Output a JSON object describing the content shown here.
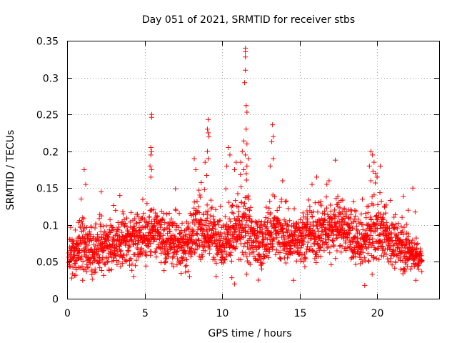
{
  "chart_data": {
    "type": "scatter",
    "title": "Day 051 of 2021, SRMTID for receiver stbs",
    "xlabel": "GPS time / hours",
    "ylabel": "SRMTID / TECUs",
    "xlim": [
      0,
      24
    ],
    "ylim": [
      0,
      0.35
    ],
    "x_ticks": [
      0,
      5,
      10,
      15,
      20
    ],
    "x_tick_labels": [
      "0",
      "5",
      "10",
      "15",
      "20"
    ],
    "y_ticks": [
      0,
      0.05,
      0.1,
      0.15,
      0.2,
      0.25,
      0.3,
      0.35
    ],
    "y_tick_labels": [
      "0",
      "0.05",
      "0.1",
      "0.15",
      "0.2",
      "0.25",
      "0.3",
      "0.35"
    ],
    "grid": true,
    "marker": "plus",
    "color": "#ff0000",
    "x_data_range": [
      0,
      22.9
    ],
    "envelope": {
      "x": [
        0,
        0.5,
        1,
        1.5,
        2,
        2.5,
        3,
        3.5,
        4,
        4.5,
        5,
        5.5,
        6,
        6.5,
        7,
        7.5,
        8,
        8.5,
        9,
        9.5,
        10,
        10.5,
        11,
        11.5,
        12,
        12.5,
        13,
        13.5,
        14,
        14.5,
        15,
        15.5,
        16,
        16.5,
        17,
        17.5,
        18,
        18.5,
        19,
        19.5,
        20,
        20.5,
        21,
        21.5,
        22,
        22.5,
        22.9
      ],
      "mean": [
        0.06,
        0.065,
        0.07,
        0.065,
        0.07,
        0.075,
        0.07,
        0.075,
        0.08,
        0.085,
        0.085,
        0.09,
        0.08,
        0.075,
        0.075,
        0.07,
        0.085,
        0.095,
        0.09,
        0.085,
        0.08,
        0.085,
        0.09,
        0.095,
        0.08,
        0.075,
        0.085,
        0.09,
        0.08,
        0.08,
        0.085,
        0.085,
        0.085,
        0.09,
        0.095,
        0.1,
        0.095,
        0.08,
        0.07,
        0.09,
        0.095,
        0.085,
        0.075,
        0.07,
        0.065,
        0.06,
        0.055
      ],
      "spread": [
        0.018,
        0.02,
        0.025,
        0.022,
        0.022,
        0.025,
        0.022,
        0.022,
        0.022,
        0.022,
        0.025,
        0.025,
        0.022,
        0.022,
        0.022,
        0.02,
        0.025,
        0.028,
        0.025,
        0.025,
        0.025,
        0.028,
        0.03,
        0.035,
        0.025,
        0.022,
        0.028,
        0.025,
        0.022,
        0.022,
        0.022,
        0.022,
        0.022,
        0.025,
        0.025,
        0.025,
        0.025,
        0.022,
        0.02,
        0.03,
        0.03,
        0.025,
        0.022,
        0.02,
        0.018,
        0.015,
        0.012
      ]
    },
    "notable_points": [
      {
        "x": 11.5,
        "y": 0.34
      },
      {
        "x": 11.5,
        "y": 0.335
      },
      {
        "x": 11.5,
        "y": 0.328
      },
      {
        "x": 11.5,
        "y": 0.31
      },
      {
        "x": 11.45,
        "y": 0.293
      },
      {
        "x": 11.55,
        "y": 0.262
      },
      {
        "x": 11.6,
        "y": 0.253
      },
      {
        "x": 11.55,
        "y": 0.23
      },
      {
        "x": 11.4,
        "y": 0.214
      },
      {
        "x": 11.6,
        "y": 0.21
      },
      {
        "x": 11.3,
        "y": 0.2
      },
      {
        "x": 11.5,
        "y": 0.195
      },
      {
        "x": 11.7,
        "y": 0.19
      },
      {
        "x": 11.2,
        "y": 0.185
      },
      {
        "x": 11.6,
        "y": 0.18
      },
      {
        "x": 11.4,
        "y": 0.175
      },
      {
        "x": 5.45,
        "y": 0.25
      },
      {
        "x": 5.45,
        "y": 0.246
      },
      {
        "x": 5.4,
        "y": 0.205
      },
      {
        "x": 5.45,
        "y": 0.2
      },
      {
        "x": 5.4,
        "y": 0.195
      },
      {
        "x": 5.35,
        "y": 0.18
      },
      {
        "x": 5.45,
        "y": 0.175
      },
      {
        "x": 5.4,
        "y": 0.165
      },
      {
        "x": 9.1,
        "y": 0.243
      },
      {
        "x": 9.05,
        "y": 0.23
      },
      {
        "x": 9.1,
        "y": 0.225
      },
      {
        "x": 9.15,
        "y": 0.22
      },
      {
        "x": 9.05,
        "y": 0.2
      },
      {
        "x": 9.1,
        "y": 0.19
      },
      {
        "x": 8.9,
        "y": 0.185
      },
      {
        "x": 13.25,
        "y": 0.236
      },
      {
        "x": 13.3,
        "y": 0.22
      },
      {
        "x": 13.2,
        "y": 0.213
      },
      {
        "x": 13.3,
        "y": 0.19
      },
      {
        "x": 13.1,
        "y": 0.18
      },
      {
        "x": 10.4,
        "y": 0.205
      },
      {
        "x": 10.5,
        "y": 0.195
      },
      {
        "x": 10.3,
        "y": 0.18
      },
      {
        "x": 10.9,
        "y": 0.185
      },
      {
        "x": 10.8,
        "y": 0.175
      },
      {
        "x": 8.2,
        "y": 0.19
      },
      {
        "x": 8.3,
        "y": 0.175
      },
      {
        "x": 1.1,
        "y": 0.175
      },
      {
        "x": 1.2,
        "y": 0.155
      },
      {
        "x": 17.3,
        "y": 0.188
      },
      {
        "x": 16.9,
        "y": 0.16
      },
      {
        "x": 19.6,
        "y": 0.2
      },
      {
        "x": 19.7,
        "y": 0.195
      },
      {
        "x": 19.8,
        "y": 0.185
      },
      {
        "x": 19.5,
        "y": 0.18
      },
      {
        "x": 19.9,
        "y": 0.17
      },
      {
        "x": 20.0,
        "y": 0.165
      },
      {
        "x": 20.2,
        "y": 0.18
      },
      {
        "x": 19.6,
        "y": 0.16
      },
      {
        "x": 16.1,
        "y": 0.165
      },
      {
        "x": 15.8,
        "y": 0.155
      },
      {
        "x": 13.9,
        "y": 0.16
      },
      {
        "x": 2.2,
        "y": 0.145
      },
      {
        "x": 3.4,
        "y": 0.14
      },
      {
        "x": 22.3,
        "y": 0.15
      },
      {
        "x": 22.0,
        "y": 0.12
      },
      {
        "x": 1.0,
        "y": 0.025
      },
      {
        "x": 4.3,
        "y": 0.03
      },
      {
        "x": 7.9,
        "y": 0.03
      },
      {
        "x": 10.8,
        "y": 0.02
      },
      {
        "x": 14.6,
        "y": 0.025
      },
      {
        "x": 19.2,
        "y": 0.018
      },
      {
        "x": 22.5,
        "y": 0.025
      },
      {
        "x": 0.3,
        "y": 0.028
      }
    ]
  }
}
